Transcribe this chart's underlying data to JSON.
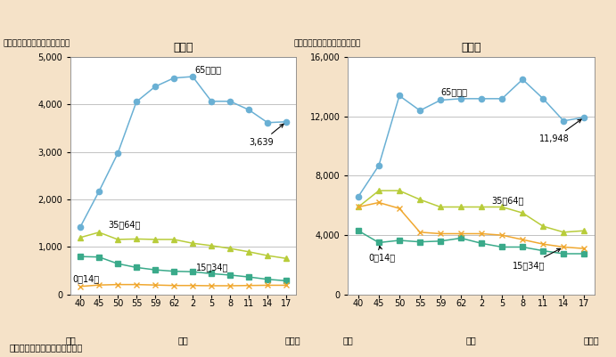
{
  "title_left": "入　院",
  "title_right": "外　来",
  "ylabel": "（各年齢階級別人口１０万対）",
  "source": "資料：厚生労働省「患者調査」",
  "x_label_bottom": "（年）",
  "bg_color": "#f5e2c8",
  "plot_bg_color": "#ffffff",
  "x_positions": [
    0,
    1,
    2,
    3,
    4,
    5,
    6,
    7,
    8,
    9,
    10,
    11
  ],
  "plain_labels": [
    "40",
    "45",
    "50",
    "55",
    "59",
    "62",
    "2",
    "5",
    "8",
    "11",
    "14",
    "17"
  ],
  "showa_label": "昭和",
  "heisei_label": "平成",
  "label_65": "65歳以上",
  "label_35_64": "35～64歳",
  "label_15_34": "15～34歳",
  "label_0_14": "0～14歳",
  "inpatient": {
    "age65plus": [
      1420,
      2170,
      2970,
      4060,
      4380,
      4560,
      4590,
      4070,
      4070,
      3890,
      3620,
      3639
    ],
    "age35_64": [
      1200,
      1310,
      1160,
      1170,
      1160,
      1160,
      1080,
      1030,
      970,
      900,
      820,
      760
    ],
    "age15_34": [
      800,
      790,
      650,
      570,
      520,
      490,
      480,
      440,
      410,
      370,
      320,
      290
    ],
    "age0_14": [
      170,
      200,
      210,
      210,
      200,
      190,
      190,
      185,
      185,
      190,
      195,
      195
    ],
    "ylim": [
      0,
      5000
    ],
    "yticks": [
      0,
      1000,
      2000,
      3000,
      4000,
      5000
    ],
    "annotation_value": "3,639"
  },
  "outpatient": {
    "age65plus": [
      6600,
      8700,
      13400,
      12400,
      13100,
      13200,
      13200,
      13200,
      14500,
      13200,
      11700,
      11948
    ],
    "age35_64": [
      5900,
      7000,
      7000,
      6400,
      5900,
      5900,
      5900,
      5900,
      5500,
      4600,
      4200,
      4300
    ],
    "age15_34": [
      4300,
      3500,
      3650,
      3550,
      3600,
      3800,
      3450,
      3200,
      3200,
      2950,
      2750,
      2750
    ],
    "age0_14": [
      5900,
      6200,
      5800,
      4200,
      4100,
      4100,
      4100,
      4000,
      3700,
      3400,
      3200,
      3100
    ],
    "ylim": [
      0,
      16000
    ],
    "yticks": [
      0,
      4000,
      8000,
      12000,
      16000
    ],
    "annotation_value": "11,948"
  },
  "colors": {
    "age65plus": "#6ab0d4",
    "age35_64": "#b8cc3a",
    "age15_34": "#3aaa8a",
    "age0_14": "#f0a830"
  },
  "markers": {
    "age65plus": "o",
    "age35_64": "^",
    "age15_34": "s",
    "age0_14": "x"
  }
}
